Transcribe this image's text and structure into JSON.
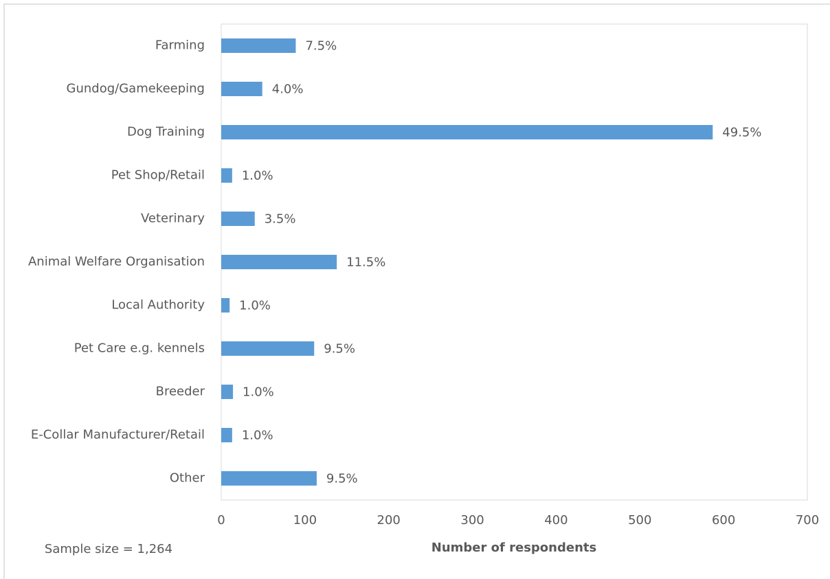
{
  "chart_data": {
    "type": "barh",
    "categories": [
      "Farming",
      "Gundog/Gamekeeping",
      "Dog Training",
      "Pet Shop/Retail",
      "Veterinary",
      "Animal Welfare Organisation",
      "Local Authority",
      "Pet Care e.g. kennels",
      "Breeder",
      "E-Collar Manufacturer/Retail",
      "Other"
    ],
    "values": [
      89,
      49,
      587,
      13,
      40,
      138,
      10,
      111,
      14,
      13,
      114
    ],
    "value_labels": [
      "7.5%",
      "4.0%",
      "49.5%",
      "1.0%",
      "3.5%",
      "11.5%",
      "1.0%",
      "9.5%",
      "1.0%",
      "1.0%",
      "9.5%"
    ],
    "color": "#5b9bd5",
    "xlim": [
      0,
      700
    ],
    "xticks": [
      0,
      100,
      200,
      300,
      400,
      500,
      600,
      700
    ],
    "xlabel": "Number of respondents",
    "annotation": "Sample size = 1,264"
  }
}
